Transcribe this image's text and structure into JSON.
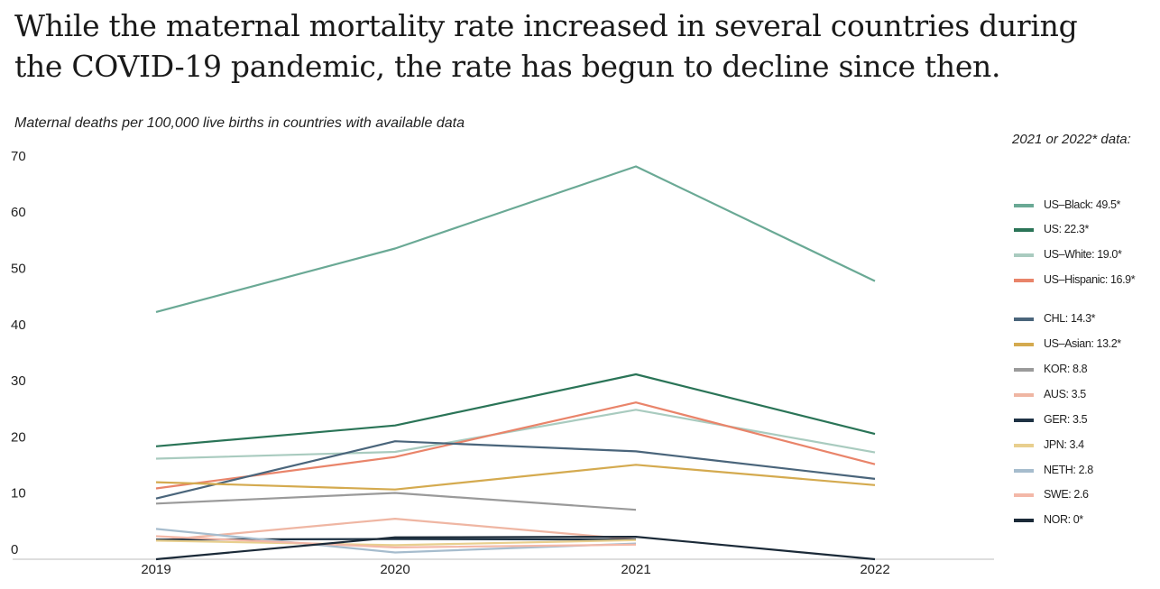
{
  "title": "While the maternal mortality rate increased in several countries during the COVID-19 pandemic, the rate has begun to decline since then.",
  "subtitle": "Maternal deaths per 100,000 live births in countries with available data",
  "legend_title": "2021 or 2022* data:",
  "chart_data": {
    "type": "line",
    "title": "While the maternal mortality rate increased in several countries during the COVID-19 pandemic, the rate has begun to decline since then.",
    "ylabel": "Maternal deaths per 100,000 live births in countries with available data",
    "xlabel": "",
    "x": [
      "2019",
      "2020",
      "2021",
      "2022"
    ],
    "ylim": [
      0,
      70
    ],
    "yticks": [
      0,
      10,
      20,
      30,
      40,
      50,
      60,
      70
    ],
    "grid": false,
    "legend_position": "right",
    "series": [
      {
        "name": "US–Black: 49.5*",
        "color": "#6aa995",
        "values": [
          44.0,
          55.3,
          69.9,
          49.5
        ]
      },
      {
        "name": "US: 22.3*",
        "color": "#2a7457",
        "values": [
          20.1,
          23.8,
          32.9,
          22.3
        ]
      },
      {
        "name": "US–White: 19.0*",
        "color": "#a9cbbf",
        "values": [
          17.9,
          19.1,
          26.6,
          19.0
        ]
      },
      {
        "name": "US–Hispanic: 16.9*",
        "color": "#e9846a",
        "values": [
          12.6,
          18.2,
          27.9,
          16.9
        ]
      },
      {
        "name": "CHL: 14.3*",
        "color": "#4a657b",
        "values": [
          10.8,
          21.0,
          19.2,
          14.3
        ]
      },
      {
        "name": "US–Asian: 13.2*",
        "color": "#d4aa4f",
        "values": [
          13.7,
          12.4,
          16.8,
          13.2
        ]
      },
      {
        "name": "KOR: 8.8",
        "color": "#9a9a9a",
        "values": [
          9.9,
          11.8,
          8.8,
          null
        ]
      },
      {
        "name": "AUS: 3.5",
        "color": "#efb6a3",
        "values": [
          3.3,
          7.2,
          3.5,
          null
        ]
      },
      {
        "name": "GER: 3.5",
        "color": "#1e3244",
        "values": [
          3.5,
          3.6,
          3.5,
          null
        ]
      },
      {
        "name": "JPN: 3.4",
        "color": "#e8cf8e",
        "values": [
          3.3,
          2.5,
          3.4,
          null
        ]
      },
      {
        "name": "NETH: 2.8",
        "color": "#a6bccd",
        "values": [
          5.4,
          1.2,
          2.8,
          null
        ]
      },
      {
        "name": "SWE: 2.6",
        "color": "#f3b8a8",
        "values": [
          4.1,
          2.1,
          2.6,
          null
        ]
      },
      {
        "name": "NOR: 0*",
        "color": "#1b2a38",
        "values": [
          0,
          3.9,
          4.0,
          0
        ]
      }
    ]
  }
}
